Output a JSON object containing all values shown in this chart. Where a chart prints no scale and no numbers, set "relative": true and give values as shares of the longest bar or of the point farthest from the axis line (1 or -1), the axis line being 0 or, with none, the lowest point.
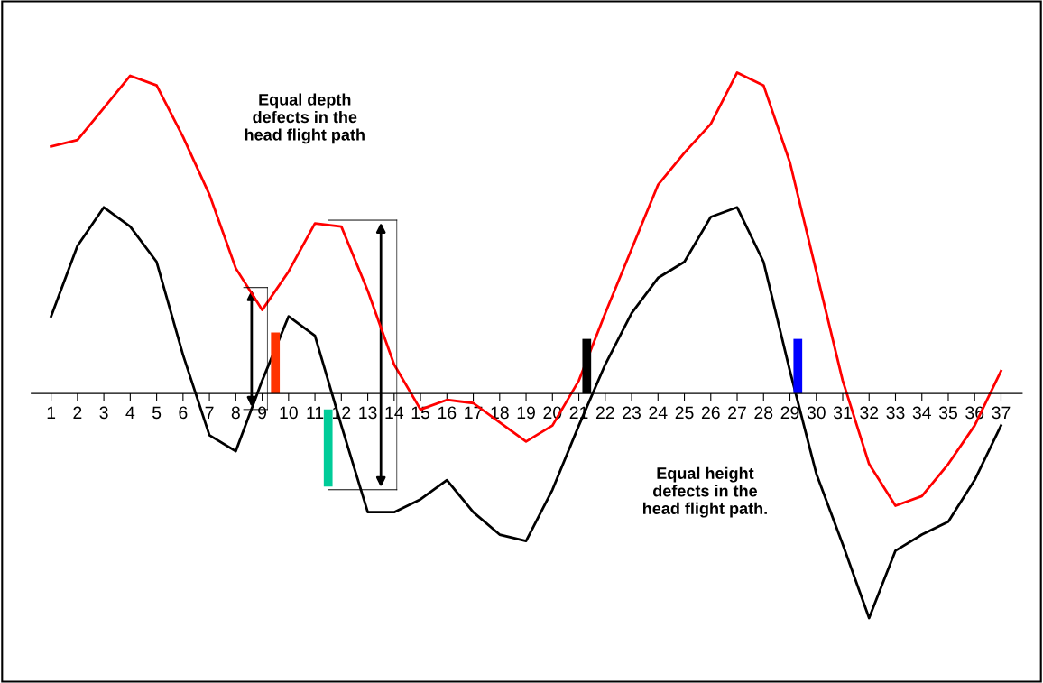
{
  "chart_data": {
    "type": "line",
    "relative": true,
    "categories": [
      "1",
      "2",
      "3",
      "4",
      "5",
      "6",
      "7",
      "8",
      "9",
      "10",
      "11",
      "12",
      "13",
      "14",
      "15",
      "16",
      "17",
      "18",
      "19",
      "20",
      "21",
      "22",
      "23",
      "24",
      "25",
      "26",
      "27",
      "28",
      "29",
      "30",
      "31",
      "32",
      "33",
      "34",
      "35",
      "36",
      "37"
    ],
    "series": [
      {
        "color": "#ff0000",
        "values": [
          0.77,
          0.79,
          0.89,
          0.99,
          0.96,
          0.8,
          0.62,
          0.39,
          0.26,
          0.38,
          0.53,
          0.52,
          0.32,
          0.09,
          -0.05,
          -0.02,
          -0.03,
          -0.09,
          -0.15,
          -0.1,
          0.04,
          0.25,
          0.45,
          0.65,
          0.75,
          0.84,
          1.0,
          0.96,
          0.72,
          0.38,
          0.04,
          -0.22,
          -0.35,
          -0.32,
          -0.22,
          -0.1,
          0.07
        ]
      },
      {
        "color": "#000000",
        "values": [
          0.24,
          0.46,
          0.58,
          0.52,
          0.41,
          0.12,
          -0.13,
          -0.18,
          0.04,
          0.24,
          0.18,
          -0.1,
          -0.37,
          -0.37,
          -0.33,
          -0.27,
          -0.37,
          -0.44,
          -0.46,
          -0.3,
          -0.1,
          0.09,
          0.25,
          0.36,
          0.41,
          0.55,
          0.58,
          0.41,
          0.07,
          -0.25,
          -0.47,
          -0.7,
          -0.49,
          -0.44,
          -0.4,
          -0.27,
          -0.1
        ]
      }
    ],
    "annotations": [
      "Equal depth\ndefects in the\nhead flight path",
      "Equal height\ndefects in the\nhead flight path."
    ]
  }
}
